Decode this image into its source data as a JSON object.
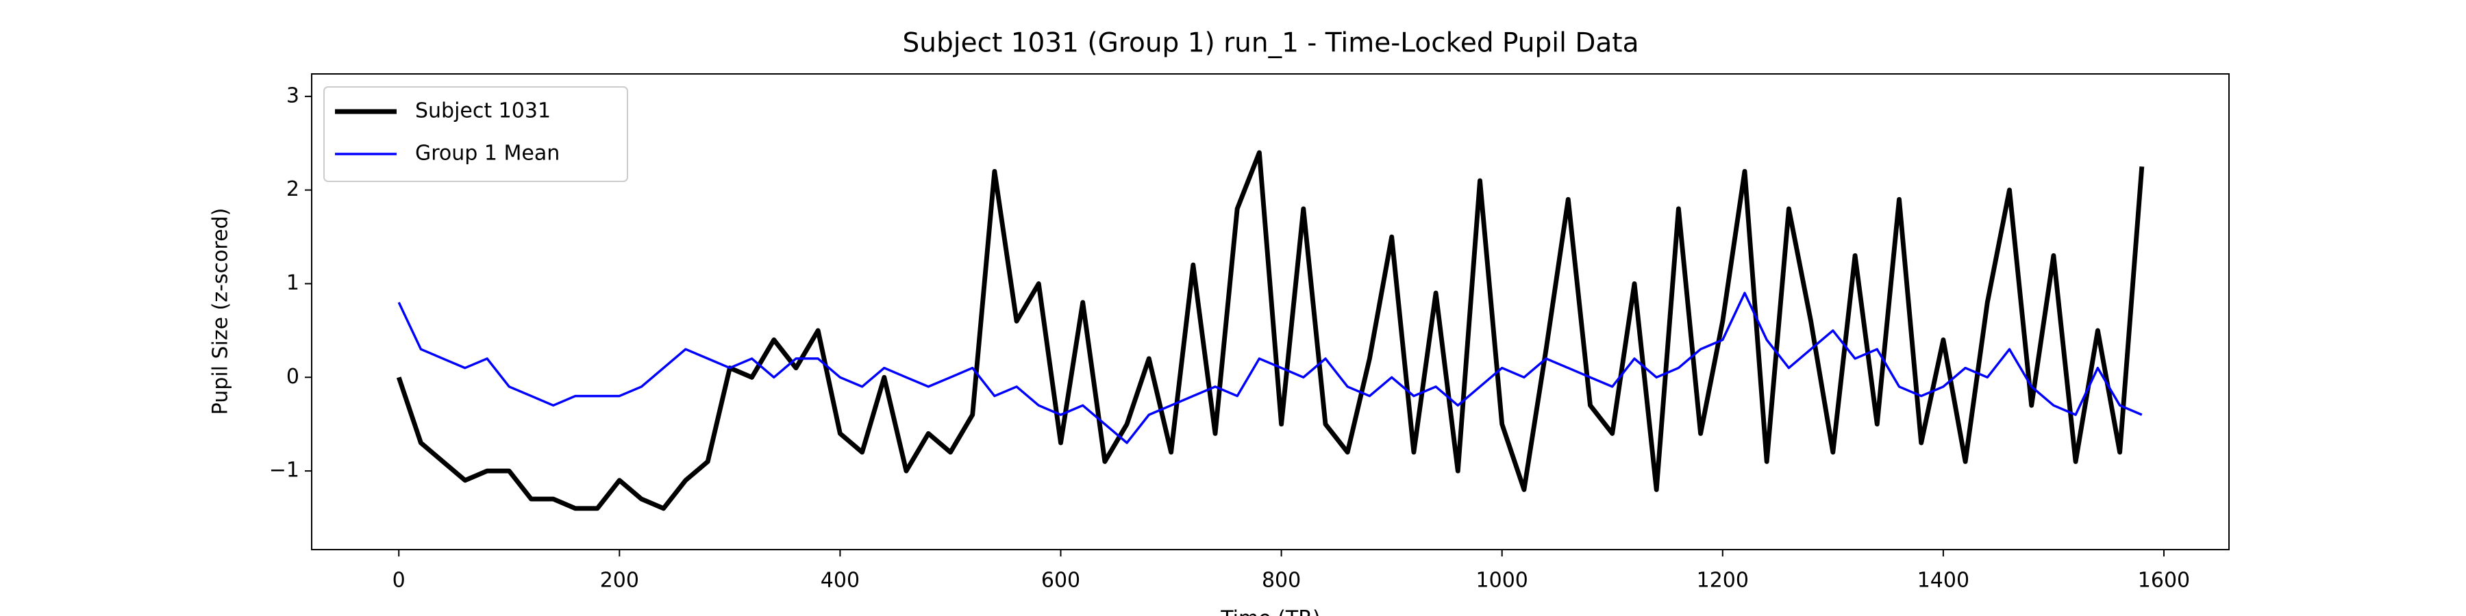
{
  "chart_data": {
    "type": "line",
    "title": "Subject 1031 (Group 1) run_1 - Time-Locked Pupil Data",
    "x_label": "Time (TR)",
    "y_label": "Pupil Size (z-scored)",
    "legend": "upper left",
    "grid": false,
    "x": [
      0,
      20,
      40,
      60,
      80,
      100,
      120,
      140,
      160,
      180,
      200,
      220,
      240,
      260,
      280,
      300,
      320,
      340,
      360,
      380,
      400,
      420,
      440,
      460,
      480,
      500,
      520,
      540,
      560,
      580,
      600,
      620,
      640,
      660,
      680,
      700,
      720,
      740,
      760,
      780,
      800,
      820,
      840,
      860,
      880,
      900,
      920,
      940,
      960,
      980,
      1000,
      1020,
      1040,
      1060,
      1080,
      1100,
      1120,
      1140,
      1160,
      1180,
      1200,
      1220,
      1240,
      1260,
      1280,
      1300,
      1320,
      1340,
      1360,
      1380,
      1400,
      1420,
      1440,
      1460,
      1480,
      1500,
      1520,
      1540,
      1560,
      1580
    ],
    "series": [
      {
        "name": "Subject 1031",
        "color": "#000000",
        "width": 3,
        "values": [
          0,
          -0.7,
          -0.9,
          -1.1,
          -1.0,
          -1.0,
          -1.3,
          -1.3,
          -1.4,
          -1.4,
          -1.1,
          -1.3,
          -1.4,
          -1.1,
          -0.9,
          0.1,
          0.0,
          0.4,
          0.1,
          0.5,
          -0.6,
          -0.8,
          0.0,
          -1.0,
          -0.6,
          -0.8,
          -0.4,
          2.2,
          0.6,
          1.0,
          -0.7,
          0.8,
          -0.9,
          -0.5,
          0.2,
          -0.8,
          1.2,
          -0.6,
          1.8,
          2.4,
          -0.5,
          1.8,
          -0.5,
          -0.8,
          0.2,
          1.5,
          -0.8,
          0.9,
          -1.0,
          2.1,
          -0.5,
          -1.2,
          0.3,
          1.9,
          -0.3,
          -0.6,
          1.0,
          -1.2,
          1.8,
          -0.6,
          0.6,
          2.2,
          -0.9,
          1.8,
          0.6,
          -0.8,
          1.3,
          -0.5,
          1.9,
          -0.7,
          0.4,
          -0.9,
          0.8,
          2.0,
          -0.3,
          1.3,
          -0.9,
          0.5,
          -0.8,
          2.25
        ]
      },
      {
        "name": "Group 1 Mean",
        "color": "#0000ff",
        "width": 1.5,
        "values": [
          0.8,
          0.3,
          0.2,
          0.1,
          0.2,
          -0.1,
          -0.2,
          -0.3,
          -0.2,
          -0.2,
          -0.2,
          -0.1,
          0.1,
          0.3,
          0.2,
          0.1,
          0.2,
          0.0,
          0.2,
          0.2,
          0.0,
          -0.1,
          0.1,
          0.0,
          -0.1,
          0.0,
          0.1,
          -0.2,
          -0.1,
          -0.3,
          -0.4,
          -0.3,
          -0.5,
          -0.7,
          -0.4,
          -0.3,
          -0.2,
          -0.1,
          -0.2,
          0.2,
          0.1,
          0.0,
          0.2,
          -0.1,
          -0.2,
          0.0,
          -0.2,
          -0.1,
          -0.3,
          -0.1,
          0.1,
          0.0,
          0.2,
          0.1,
          0.0,
          -0.1,
          0.2,
          0.0,
          0.1,
          0.3,
          0.4,
          0.9,
          0.4,
          0.1,
          0.3,
          0.5,
          0.2,
          0.3,
          -0.1,
          -0.2,
          -0.1,
          0.1,
          0.0,
          0.3,
          -0.1,
          -0.3,
          -0.4,
          0.1,
          -0.3,
          -0.4
        ]
      }
    ],
    "xlim": [
      -79,
      1659
    ],
    "ylim": [
      -1.84,
      3.24
    ],
    "xticks": [
      0,
      200,
      400,
      600,
      800,
      1000,
      1200,
      1400,
      1600
    ],
    "yticks": [
      {
        "value": -1,
        "label": "−1"
      },
      0,
      1,
      2,
      3
    ]
  }
}
